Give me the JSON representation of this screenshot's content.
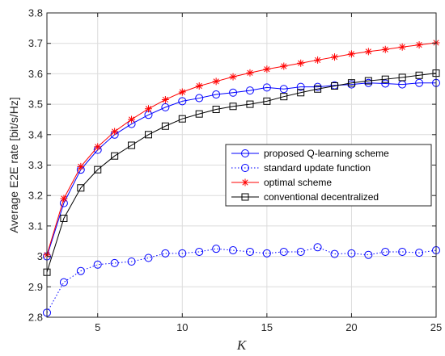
{
  "chart_data": {
    "type": "line",
    "xlabel": "K",
    "ylabel": "Average E2E rate [bit/s/Hz]",
    "xlim": [
      2,
      25
    ],
    "ylim": [
      2.8,
      3.8
    ],
    "xticks": [
      5,
      10,
      15,
      20,
      25
    ],
    "yticks": [
      2.8,
      2.9,
      3.0,
      3.1,
      3.2,
      3.3,
      3.4,
      3.5,
      3.6,
      3.7,
      3.8
    ],
    "ytick_labels": [
      "2.8",
      "2.9",
      "3",
      "3.1",
      "3.2",
      "3.3",
      "3.4",
      "3.5",
      "3.6",
      "3.7",
      "3.8"
    ],
    "grid": true,
    "legend_position": "center-right",
    "x": [
      2,
      3,
      4,
      5,
      6,
      7,
      8,
      9,
      10,
      11,
      12,
      13,
      14,
      15,
      16,
      17,
      18,
      19,
      20,
      21,
      22,
      23,
      24,
      25
    ],
    "series": [
      {
        "name": "proposed Q-learning scheme",
        "color": "#0000ff",
        "line": "solid",
        "marker": "circle",
        "values": [
          3.0,
          3.175,
          3.285,
          3.35,
          3.4,
          3.435,
          3.465,
          3.49,
          3.51,
          3.52,
          3.532,
          3.538,
          3.545,
          3.555,
          3.55,
          3.557,
          3.557,
          3.562,
          3.565,
          3.57,
          3.568,
          3.565,
          3.57,
          3.57
        ]
      },
      {
        "name": "standard update function",
        "color": "#0000ff",
        "line": "dotted",
        "marker": "circle",
        "values": [
          2.815,
          2.915,
          2.952,
          2.973,
          2.978,
          2.983,
          2.995,
          3.01,
          3.01,
          3.015,
          3.025,
          3.02,
          3.015,
          3.01,
          3.015,
          3.015,
          3.03,
          3.008,
          3.01,
          3.005,
          3.015,
          3.015,
          3.012,
          3.02
        ]
      },
      {
        "name": "optimal scheme",
        "color": "#ff0000",
        "line": "solid",
        "marker": "star",
        "values": [
          3.005,
          3.19,
          3.295,
          3.36,
          3.41,
          3.45,
          3.485,
          3.515,
          3.54,
          3.56,
          3.575,
          3.59,
          3.603,
          3.615,
          3.625,
          3.635,
          3.645,
          3.655,
          3.665,
          3.673,
          3.68,
          3.688,
          3.695,
          3.702
        ]
      },
      {
        "name": "conventional decentralized",
        "color": "#000000",
        "line": "solid",
        "marker": "square",
        "values": [
          2.948,
          3.125,
          3.225,
          3.285,
          3.33,
          3.365,
          3.4,
          3.428,
          3.452,
          3.468,
          3.483,
          3.493,
          3.5,
          3.51,
          3.525,
          3.538,
          3.55,
          3.56,
          3.57,
          3.577,
          3.582,
          3.588,
          3.595,
          3.602
        ]
      }
    ]
  }
}
